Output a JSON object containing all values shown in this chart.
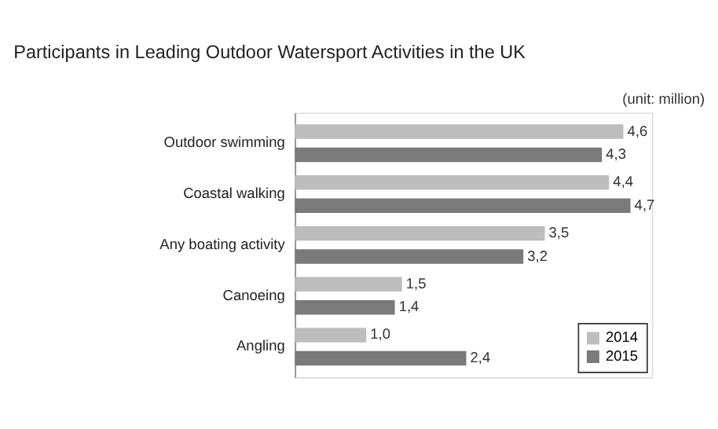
{
  "chart_data": {
    "type": "bar",
    "orientation": "horizontal",
    "title": "Participants in Leading Outdoor Watersport Activities in the UK",
    "annotations": [
      "(unit: million)"
    ],
    "categories": [
      "Outdoor swimming",
      "Coastal walking",
      "Any boating activity",
      "Canoeing",
      "Angling"
    ],
    "series": [
      {
        "name": "2014",
        "color": "#bdbdbd",
        "values": [
          4.6,
          4.4,
          3.5,
          1.5,
          1.0
        ],
        "value_labels": [
          "4,6",
          "4,4",
          "3,5",
          "1,5",
          "1,0"
        ]
      },
      {
        "name": "2015",
        "color": "#7a7a7a",
        "values": [
          4.3,
          4.7,
          3.2,
          1.4,
          2.4
        ],
        "value_labels": [
          "4,3",
          "4,7",
          "3,2",
          "1,4",
          "2,4"
        ]
      }
    ],
    "legend": "bottom right",
    "grid": false
  }
}
